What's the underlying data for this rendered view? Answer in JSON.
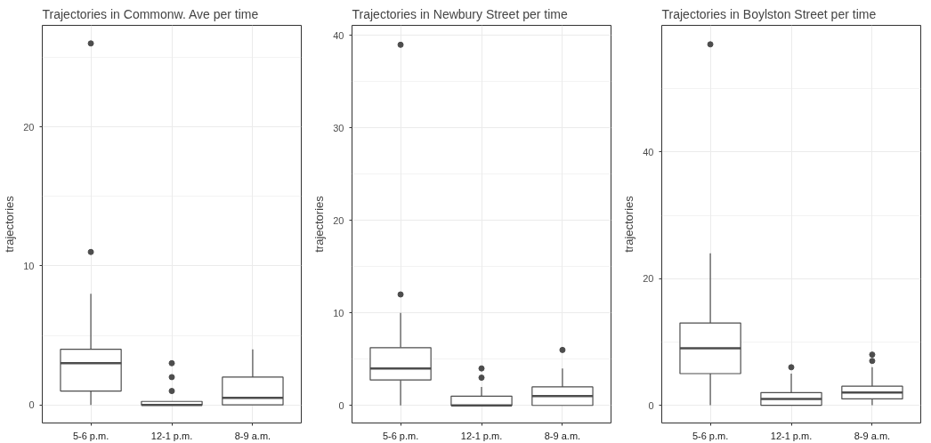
{
  "chart_data": [
    {
      "type": "box",
      "title": "Trajectories in Commonw. Ave per time",
      "ylabel": "trajectories",
      "categories": [
        "5-6 p.m.",
        "12-1 p.m.",
        "8-9 a.m."
      ],
      "color": "#4d4d4d",
      "grid": true,
      "ylim": [
        -1.3,
        27.3
      ],
      "yticks": [
        0,
        10,
        20
      ],
      "boxes": [
        {
          "low": 0,
          "q1": 1,
          "median": 3,
          "q3": 4,
          "high": 8,
          "outliers": [
            11,
            26
          ]
        },
        {
          "low": 0,
          "q1": 0,
          "median": 0,
          "q3": 0.25,
          "high": 0.25,
          "outliers": [
            1,
            2,
            3
          ]
        },
        {
          "low": 0,
          "q1": 0,
          "median": 0.5,
          "q3": 2,
          "high": 4
        }
      ]
    },
    {
      "type": "box",
      "title": "Trajectories in Newbury Street per time",
      "ylabel": "trajectories",
      "categories": [
        "5-6 p.m.",
        "12-1 p.m.",
        "8-9 a.m."
      ],
      "color": "#4d4d4d",
      "grid": true,
      "ylim": [
        -1.9,
        41.1
      ],
      "yticks": [
        0,
        10,
        20,
        30,
        40
      ],
      "boxes": [
        {
          "low": 0,
          "q1": 2.75,
          "median": 4,
          "q3": 6.25,
          "high": 10,
          "outliers": [
            12,
            39
          ]
        },
        {
          "low": 0,
          "q1": 0,
          "median": 0,
          "q3": 1,
          "high": 2,
          "outliers": [
            3,
            4
          ]
        },
        {
          "low": 0,
          "q1": 0,
          "median": 1,
          "q3": 2,
          "high": 4,
          "outliers": [
            6
          ]
        }
      ]
    },
    {
      "type": "box",
      "title": "Trajectories in Boylston Street per time",
      "ylabel": "trajectories",
      "categories": [
        "5-6 p.m.",
        "12-1 p.m.",
        "8-9 a.m."
      ],
      "color": "#4d4d4d",
      "grid": true,
      "ylim": [
        -2.8,
        60
      ],
      "yticks": [
        0,
        20,
        40
      ],
      "boxes": [
        {
          "low": 0,
          "q1": 5,
          "median": 9,
          "q3": 13,
          "high": 24,
          "outliers": [
            57
          ]
        },
        {
          "low": 0,
          "q1": 0,
          "median": 1,
          "q3": 2,
          "high": 5,
          "outliers": [
            6
          ]
        },
        {
          "low": 0,
          "q1": 1,
          "median": 2,
          "q3": 3,
          "high": 6,
          "outliers": [
            7,
            8
          ]
        }
      ]
    }
  ]
}
